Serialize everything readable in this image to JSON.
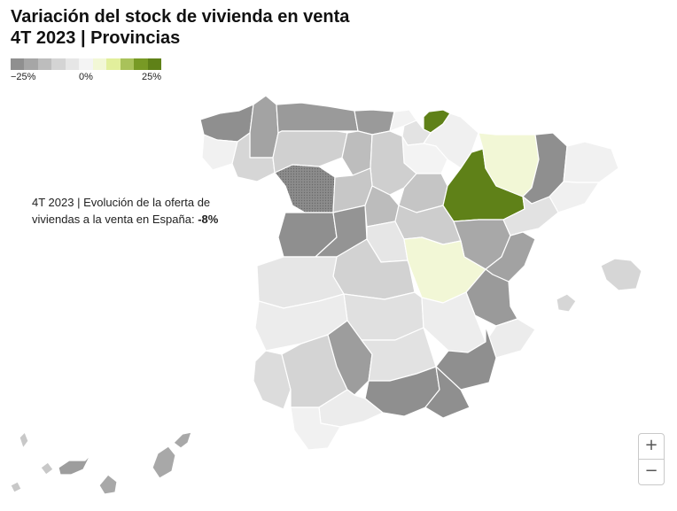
{
  "title_line1": "Variación del stock de vivienda en venta",
  "title_line2": "4T 2023 | Provincias",
  "legend": {
    "min_label": "−25%",
    "mid_label": "0%",
    "max_label": "25%",
    "min_value": -25,
    "max_value": 25,
    "colors": [
      "#8f8f8f",
      "#a6a6a6",
      "#bdbdbd",
      "#d4d4d4",
      "#e6e6e6",
      "#f4f4f4",
      "#f2f7d6",
      "#e2ef9c",
      "#a9c25a",
      "#789a25",
      "#5f8118"
    ]
  },
  "annotation": {
    "text": "4T 2023 | Evolución de la oferta de viviendas a la venta en España: ",
    "value": "-8%"
  },
  "zoom": {
    "in_label": "+",
    "out_label": "−"
  }
}
